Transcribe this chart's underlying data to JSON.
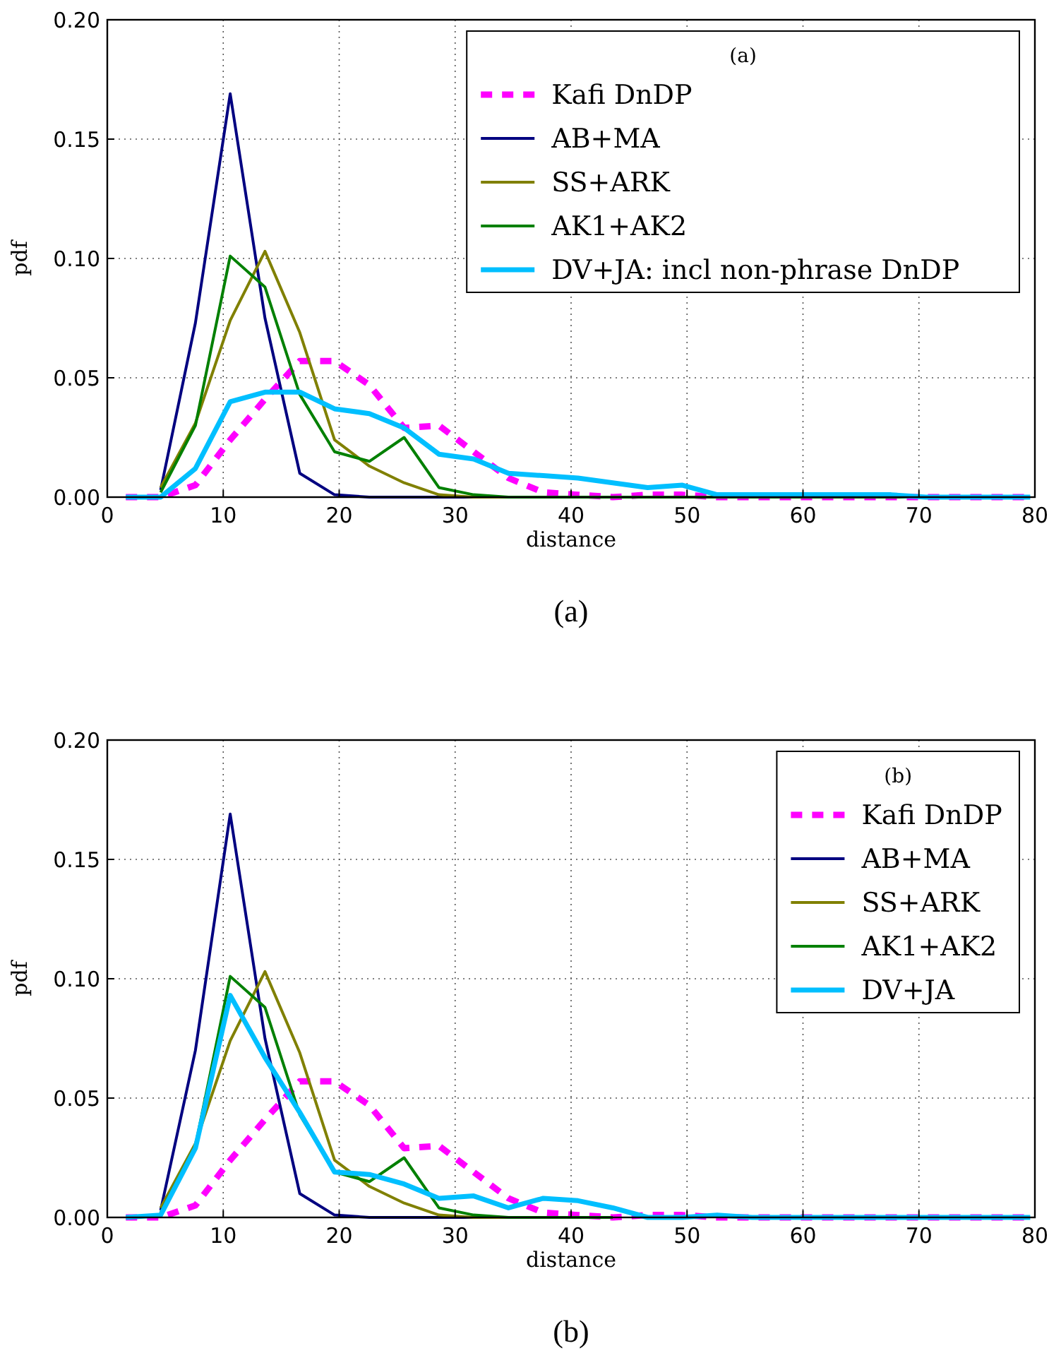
{
  "chart_data": [
    {
      "type": "line",
      "legend_title": "(a)",
      "xlabel": "distance",
      "ylabel": "pdf",
      "annotations": [
        "(a)"
      ],
      "xlim": [
        0,
        80
      ],
      "ylim": [
        0,
        0.2
      ],
      "xticks": [
        0,
        10,
        20,
        30,
        40,
        50,
        60,
        70,
        80
      ],
      "yticks": [
        {
          "value": 0,
          "label": "0.00"
        },
        {
          "value": 0.05,
          "label": "0.05"
        },
        {
          "value": 0.1,
          "label": "0.10"
        },
        {
          "value": 0.15,
          "label": "0.15"
        },
        {
          "value": 0.2,
          "label": "0.20"
        }
      ],
      "grid": true,
      "legend": "top right",
      "x": [
        1.6,
        4.6,
        7.6,
        10.6,
        13.6,
        16.6,
        19.6,
        22.6,
        25.6,
        28.6,
        31.6,
        34.6,
        37.6,
        40.6,
        43.6,
        46.6,
        49.6,
        52.6,
        55.6,
        58.6,
        61.6,
        64.6,
        67.6,
        70.6,
        73.6,
        76.6,
        79.6
      ],
      "series": [
        {
          "name": "Kafi DnDP",
          "color": "#ff00ff",
          "line_style": "dashed",
          "values": [
            0,
            0,
            0.005,
            0.024,
            0.041,
            0.057,
            0.057,
            0.047,
            0.029,
            0.03,
            0.019,
            0.008,
            0.002,
            0.001,
            0,
            0.001,
            0.001,
            0,
            0,
            0,
            0,
            0,
            0,
            0,
            0,
            0,
            0
          ]
        },
        {
          "name": "AB+MA",
          "color": "#000080",
          "line_style": "solid",
          "values": [
            null,
            0.003,
            0.073,
            0.169,
            0.075,
            0.01,
            0.001,
            0,
            0,
            0,
            0,
            null,
            null,
            null,
            null,
            null,
            null,
            null,
            null,
            null,
            null,
            null,
            null,
            null,
            null,
            null,
            null
          ]
        },
        {
          "name": "SS+ARK",
          "color": "#808000",
          "line_style": "solid",
          "values": [
            null,
            0.004,
            0.031,
            0.074,
            0.103,
            0.069,
            0.024,
            0.013,
            0.006,
            0.001,
            0,
            0,
            null,
            null,
            null,
            null,
            null,
            null,
            null,
            null,
            null,
            null,
            null,
            null,
            null,
            null,
            null
          ]
        },
        {
          "name": "AK1+AK2",
          "color": "#008000",
          "line_style": "solid",
          "values": [
            null,
            0.002,
            0.03,
            0.101,
            0.088,
            0.043,
            0.019,
            0.015,
            0.025,
            0.004,
            0.001,
            0,
            0,
            0,
            0,
            0,
            0,
            0,
            0,
            0,
            0,
            0,
            0,
            0,
            null,
            null,
            null
          ]
        },
        {
          "name": "DV+JA: incl non-phrase DnDP",
          "color": "#00bfff",
          "line_style": "solid",
          "values": [
            0,
            0,
            0.012,
            0.04,
            0.044,
            0.044,
            0.037,
            0.035,
            0.029,
            0.018,
            0.016,
            0.01,
            0.009,
            0.008,
            0.006,
            0.004,
            0.005,
            0.001,
            0.001,
            0.001,
            0.001,
            0.001,
            0.001,
            0,
            0,
            0,
            0
          ]
        }
      ]
    },
    {
      "type": "line",
      "legend_title": "(b)",
      "xlabel": "distance",
      "ylabel": "pdf",
      "annotations": [
        "(b)"
      ],
      "xlim": [
        0,
        80
      ],
      "ylim": [
        0,
        0.2
      ],
      "xticks": [
        0,
        10,
        20,
        30,
        40,
        50,
        60,
        70,
        80
      ],
      "yticks": [
        {
          "value": 0,
          "label": "0.00"
        },
        {
          "value": 0.05,
          "label": "0.05"
        },
        {
          "value": 0.1,
          "label": "0.10"
        },
        {
          "value": 0.15,
          "label": "0.15"
        },
        {
          "value": 0.2,
          "label": "0.20"
        }
      ],
      "grid": true,
      "legend": "top right",
      "x": [
        1.6,
        4.6,
        7.6,
        10.6,
        13.6,
        16.6,
        19.6,
        22.6,
        25.6,
        28.6,
        31.6,
        34.6,
        37.6,
        40.6,
        43.6,
        46.6,
        49.6,
        52.6,
        55.6,
        58.6,
        61.6,
        64.6,
        67.6,
        70.6,
        73.6,
        76.6,
        79.6
      ],
      "series": [
        {
          "name": "Kafi DnDP",
          "color": "#ff00ff",
          "line_style": "dashed",
          "values": [
            0,
            0,
            0.005,
            0.024,
            0.041,
            0.057,
            0.057,
            0.047,
            0.029,
            0.03,
            0.019,
            0.008,
            0.002,
            0.001,
            0,
            0.001,
            0.001,
            0,
            0,
            0,
            0,
            0,
            0,
            0,
            0,
            0,
            0
          ]
        },
        {
          "name": "AB+MA",
          "color": "#000080",
          "line_style": "solid",
          "values": [
            null,
            0.003,
            0.07,
            0.169,
            0.075,
            0.01,
            0.001,
            0,
            0,
            0,
            0,
            null,
            null,
            null,
            null,
            null,
            null,
            null,
            null,
            null,
            null,
            null,
            null,
            null,
            null,
            null,
            null
          ]
        },
        {
          "name": "SS+ARK",
          "color": "#808000",
          "line_style": "solid",
          "values": [
            null,
            0.004,
            0.031,
            0.074,
            0.103,
            0.069,
            0.024,
            0.013,
            0.006,
            0.001,
            0,
            0,
            null,
            null,
            null,
            null,
            null,
            null,
            null,
            null,
            null,
            null,
            null,
            null,
            null,
            null,
            null
          ]
        },
        {
          "name": "AK1+AK2",
          "color": "#008000",
          "line_style": "solid",
          "values": [
            null,
            0.002,
            0.03,
            0.101,
            0.088,
            0.043,
            0.019,
            0.015,
            0.025,
            0.004,
            0.001,
            0,
            0,
            0,
            0,
            null,
            null,
            null,
            null,
            null,
            null,
            null,
            null,
            null,
            null,
            null,
            null
          ]
        },
        {
          "name": "DV+JA",
          "color": "#00bfff",
          "line_style": "solid",
          "values": [
            0,
            0.001,
            0.029,
            0.093,
            0.067,
            0.044,
            0.019,
            0.018,
            0.014,
            0.008,
            0.009,
            0.004,
            0.008,
            0.007,
            0.004,
            0,
            0,
            0.001,
            0,
            0,
            0,
            0,
            0,
            0,
            0,
            0,
            0
          ]
        }
      ]
    }
  ]
}
